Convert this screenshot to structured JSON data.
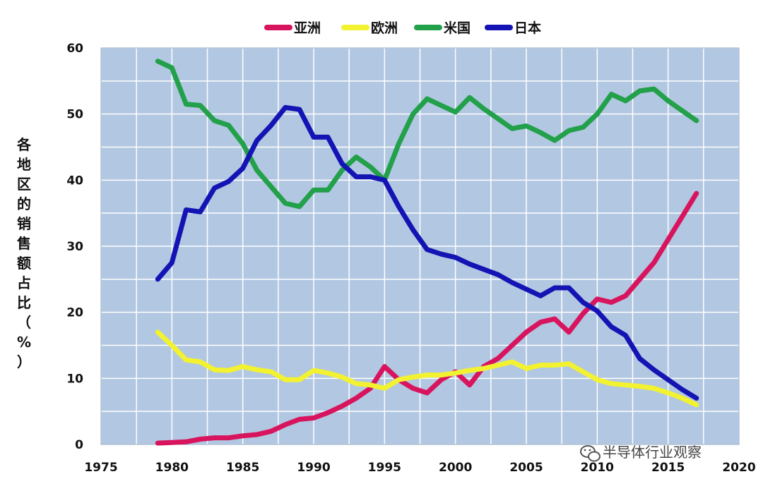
{
  "watermark": "半导体行业观察",
  "chart_data": {
    "type": "line",
    "title": "",
    "xlabel": "",
    "ylabel": "各地区的销售额占比（%）",
    "xlim": [
      1975,
      2020
    ],
    "ylim": [
      0,
      60
    ],
    "xticks": [
      1975,
      1980,
      1985,
      1990,
      1995,
      2000,
      2005,
      2010,
      2015,
      2020
    ],
    "yticks": [
      0,
      10,
      20,
      30,
      40,
      50,
      60
    ],
    "grid": true,
    "legend_position": "top-center",
    "plot_background": "#b2c7e1",
    "series": [
      {
        "name": "亚洲",
        "color": "#d8145e",
        "x": [
          1979,
          1980,
          1981,
          1982,
          1983,
          1984,
          1985,
          1986,
          1987,
          1988,
          1989,
          1990,
          1991,
          1992,
          1993,
          1994,
          1995,
          1996,
          1997,
          1998,
          1999,
          2000,
          2001,
          2002,
          2003,
          2004,
          2005,
          2006,
          2007,
          2008,
          2009,
          2010,
          2011,
          2012,
          2013,
          2014,
          2015,
          2016,
          2017
        ],
        "values": [
          0.2,
          0.3,
          0.4,
          0.8,
          1.0,
          1.0,
          1.3,
          1.5,
          2.0,
          3.0,
          3.8,
          4.0,
          4.8,
          5.8,
          7.0,
          8.5,
          11.8,
          9.8,
          8.5,
          7.8,
          9.8,
          11.0,
          9.0,
          11.8,
          13.0,
          15.0,
          17.0,
          18.5,
          19.0,
          17.0,
          19.8,
          22.0,
          21.5,
          22.5,
          25.0,
          27.5,
          31.0,
          34.5,
          38.0
        ]
      },
      {
        "name": "欧洲",
        "color": "#f2f230",
        "x": [
          1979,
          1980,
          1981,
          1982,
          1983,
          1984,
          1985,
          1986,
          1987,
          1988,
          1989,
          1990,
          1991,
          1992,
          1993,
          1994,
          1995,
          1996,
          1997,
          1998,
          1999,
          2000,
          2001,
          2002,
          2003,
          2004,
          2005,
          2006,
          2007,
          2008,
          2009,
          2010,
          2011,
          2012,
          2013,
          2014,
          2015,
          2016,
          2017
        ],
        "values": [
          17.0,
          15.0,
          12.8,
          12.5,
          11.3,
          11.2,
          11.8,
          11.3,
          11.0,
          9.8,
          9.8,
          11.2,
          10.8,
          10.2,
          9.2,
          9.0,
          8.5,
          9.8,
          10.2,
          10.5,
          10.5,
          10.8,
          11.2,
          11.5,
          12.0,
          12.5,
          11.5,
          12.0,
          12.0,
          12.2,
          11.0,
          9.8,
          9.2,
          9.0,
          8.8,
          8.5,
          7.8,
          7.0,
          6.0
        ]
      },
      {
        "name": "米国",
        "color": "#22a04a",
        "x": [
          1979,
          1980,
          1981,
          1982,
          1983,
          1984,
          1985,
          1986,
          1987,
          1988,
          1989,
          1990,
          1991,
          1992,
          1993,
          1994,
          1995,
          1996,
          1997,
          1998,
          1999,
          2000,
          2001,
          2002,
          2003,
          2004,
          2005,
          2006,
          2007,
          2008,
          2009,
          2010,
          2011,
          2012,
          2013,
          2014,
          2015,
          2016,
          2017
        ],
        "values": [
          58.0,
          57.0,
          51.5,
          51.3,
          49.0,
          48.3,
          45.5,
          41.5,
          39.0,
          36.5,
          36.0,
          38.5,
          38.5,
          41.5,
          43.5,
          42.0,
          40.0,
          45.5,
          50.0,
          52.3,
          51.3,
          50.3,
          52.5,
          50.8,
          49.3,
          47.8,
          48.2,
          47.2,
          46.0,
          47.5,
          48.0,
          50.0,
          53.0,
          52.0,
          53.5,
          53.8,
          52.0,
          50.5,
          49.0
        ]
      },
      {
        "name": "日本",
        "color": "#1414b4",
        "x": [
          1979,
          1980,
          1981,
          1982,
          1983,
          1984,
          1985,
          1986,
          1987,
          1988,
          1989,
          1990,
          1991,
          1992,
          1993,
          1994,
          1995,
          1996,
          1997,
          1998,
          1999,
          2000,
          2001,
          2002,
          2003,
          2004,
          2005,
          2006,
          2007,
          2008,
          2009,
          2010,
          2011,
          2012,
          2013,
          2014,
          2015,
          2016,
          2017
        ],
        "values": [
          25.0,
          27.5,
          35.5,
          35.2,
          38.8,
          39.8,
          41.8,
          46.0,
          48.3,
          51.0,
          50.7,
          46.5,
          46.5,
          42.5,
          40.5,
          40.5,
          40.0,
          36.0,
          32.5,
          29.5,
          28.8,
          28.3,
          27.3,
          26.5,
          25.7,
          24.5,
          23.5,
          22.5,
          23.7,
          23.7,
          21.5,
          20.2,
          17.8,
          16.5,
          13.0,
          11.3,
          9.8,
          8.3,
          7.0
        ]
      }
    ]
  }
}
